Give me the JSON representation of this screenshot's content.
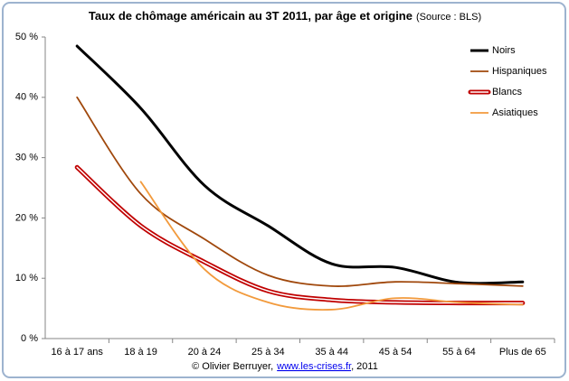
{
  "chart_data": {
    "type": "line",
    "title": "Taux de chômage américain au 3T 2011, par âge et origine",
    "subtitle": "(Source : BLS)",
    "categories": [
      "16 à 17 ans",
      "18 à 19",
      "20 à 24",
      "25 à 34",
      "35 à 44",
      "45 à 54",
      "55 à 64",
      "Plus de 65"
    ],
    "series": [
      {
        "name": "Noirs",
        "color": "#000000",
        "values": [
          48.5,
          38.2,
          25.4,
          18.7,
          12.4,
          11.8,
          9.3,
          9.4
        ]
      },
      {
        "name": "Hispaniques",
        "color": "#a0480c",
        "values": [
          40,
          24,
          16.5,
          10.5,
          8.7,
          9.4,
          9.1,
          8.7
        ]
      },
      {
        "name": "Blancs",
        "color": "#c00000",
        "hollow": true,
        "values": [
          28.4,
          18.7,
          12.7,
          7.9,
          6.4,
          6.0,
          5.9,
          5.9
        ]
      },
      {
        "name": "Asiatiques",
        "color": "#f29a3c",
        "values": [
          null,
          26,
          11.5,
          6,
          4.8,
          6.7,
          6,
          5.6
        ]
      }
    ],
    "ylim": [
      0,
      50
    ],
    "yticks": [
      {
        "value": 0,
        "label": "0 %"
      },
      {
        "value": 10,
        "label": "10 %"
      },
      {
        "value": 20,
        "label": "20 %"
      },
      {
        "value": 30,
        "label": "30 %"
      },
      {
        "value": 40,
        "label": "40 %"
      },
      {
        "value": 50,
        "label": "50 %"
      }
    ],
    "grid": false,
    "legend": "top-right",
    "footer": {
      "prefix": "© Olivier Berruyer,",
      "link": "www.les-crises.fr",
      "suffix": ", 2011"
    }
  }
}
